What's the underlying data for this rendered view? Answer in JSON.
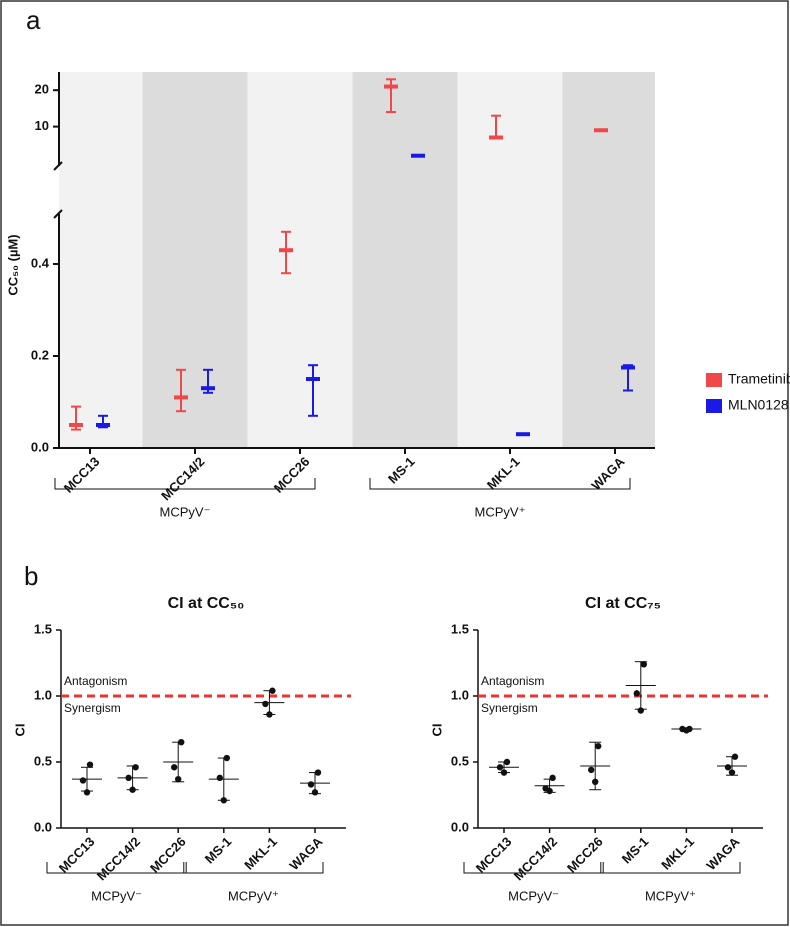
{
  "chart_data": [
    {
      "type": "errorbar",
      "panel_label": "a",
      "y_label": "CC₅₀ (µM)",
      "categories": [
        "MCC13",
        "MCC14/2",
        "MCC26",
        "MS-1",
        "MKL-1",
        "WAGA"
      ],
      "segments": [
        {
          "ylim": [
            0,
            0.5
          ],
          "yticks": [
            {
              "value": 0,
              "label": "0.0"
            },
            0.2,
            0.4
          ]
        },
        {
          "ylim": [
            0,
            25
          ],
          "yticks": [
            10,
            20
          ]
        }
      ],
      "series": [
        {
          "name": "Trametinib",
          "color": "#f04848",
          "values": [
            0.05,
            0.11,
            0.43,
            21,
            7,
            9
          ],
          "lower": [
            0.04,
            0.08,
            0.38,
            14,
            7,
            9
          ],
          "upper": [
            0.09,
            0.17,
            0.47,
            23,
            13,
            9
          ]
        },
        {
          "name": "MLN0128",
          "color": "#1a1ae6",
          "values": [
            0.05,
            0.13,
            0.15,
            2,
            0.03,
            0.175
          ],
          "lower": [
            0.045,
            0.12,
            0.07,
            1.8,
            0.03,
            0.125
          ],
          "upper": [
            0.07,
            0.17,
            0.18,
            2.2,
            0.03,
            0.18
          ]
        }
      ],
      "groups": [
        {
          "label": "MCPyV⁻",
          "categories": [
            "MCC13",
            "MCC14/2",
            "MCC26"
          ]
        },
        {
          "label": "MCPyV⁺",
          "categories": [
            "MS-1",
            "MKL-1",
            "WAGA"
          ]
        }
      ]
    },
    {
      "type": "dot",
      "panel_label": "b",
      "title": "CI at CC₅₀",
      "y_label": "CI",
      "categories": [
        "MCC13",
        "MCC14/2",
        "MCC26",
        "MS-1",
        "MKL-1",
        "WAGA"
      ],
      "points": [
        [
          0.48,
          0.36,
          0.27
        ],
        [
          0.46,
          0.38,
          0.29
        ],
        [
          0.65,
          0.46,
          0.37
        ],
        [
          0.53,
          0.38,
          0.21
        ],
        [
          1.04,
          0.94,
          0.86
        ],
        [
          0.42,
          0.33,
          0.27
        ]
      ],
      "means": [
        0.37,
        0.38,
        0.5,
        0.37,
        0.95,
        0.34
      ],
      "sd": [
        0.09,
        0.09,
        0.15,
        0.16,
        0.09,
        0.08
      ],
      "ylim": [
        0,
        1.5
      ],
      "yticks": [
        {
          "value": 0,
          "label": "0.0"
        },
        {
          "value": 0.5,
          "label": "0.5"
        },
        {
          "value": 1,
          "label": "1.0"
        },
        1.5
      ],
      "reference_line": {
        "value": 1,
        "color": "#ee3333",
        "above": "Antagonism",
        "below": "Synergism"
      },
      "groups": [
        {
          "label": "MCPyV⁻",
          "categories": [
            "MCC13",
            "MCC14/2",
            "MCC26"
          ]
        },
        {
          "label": "MCPyV⁺",
          "categories": [
            "MS-1",
            "MKL-1",
            "WAGA"
          ]
        }
      ]
    },
    {
      "type": "dot",
      "title": "CI at CC₇₅",
      "y_label": "CI",
      "categories": [
        "MCC13",
        "MCC14/2",
        "MCC26",
        "MS-1",
        "MKL-1",
        "WAGA"
      ],
      "points": [
        [
          0.5,
          0.46,
          0.42
        ],
        [
          0.38,
          0.3,
          0.28
        ],
        [
          0.62,
          0.44,
          0.35
        ],
        [
          1.24,
          1.02,
          0.89
        ],
        [
          0.75,
          0.75,
          0.74
        ],
        [
          0.54,
          0.46,
          0.42
        ]
      ],
      "means": [
        0.46,
        0.32,
        0.47,
        1.08,
        0.75,
        0.47
      ],
      "sd": [
        0.04,
        0.05,
        0.18,
        0.18,
        0.005,
        0.07
      ],
      "ylim": [
        0,
        1.5
      ],
      "yticks": [
        {
          "value": 0,
          "label": "0.0"
        },
        {
          "value": 0.5,
          "label": "0.5"
        },
        {
          "value": 1,
          "label": "1.0"
        },
        1.5
      ],
      "reference_line": {
        "value": 1,
        "color": "#ee3333",
        "above": "Antagonism",
        "below": "Synergism"
      },
      "groups": [
        {
          "label": "MCPyV⁻",
          "categories": [
            "MCC13",
            "MCC14/2",
            "MCC26"
          ]
        },
        {
          "label": "MCPyV⁺",
          "categories": [
            "MS-1",
            "MKL-1",
            "WAGA"
          ]
        }
      ]
    }
  ]
}
